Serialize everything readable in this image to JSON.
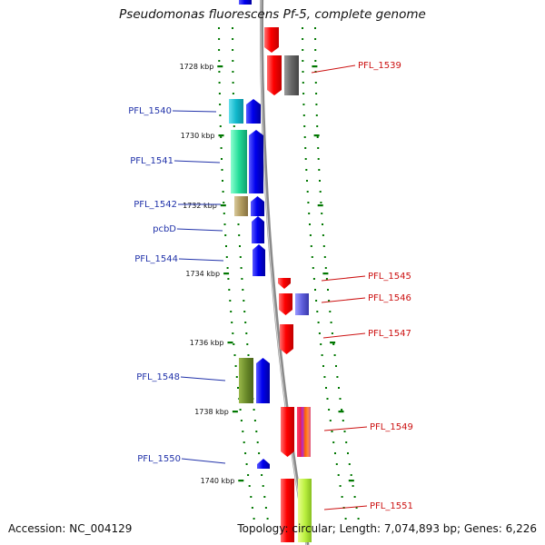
{
  "title": "Pseudomonas fluorescens Pf-5, complete genome",
  "footer": {
    "accession": "Accession: NC_004129",
    "topology": "Topology: circular; Length: 7,074,893 bp; Genes: 6,226"
  },
  "colors": {
    "forward_strand": "#0000ee",
    "reverse_strand": "#ee0000",
    "label_left": "#2233aa",
    "label_right": "#cc1111",
    "tick": "#007700",
    "backbone": "#8a8a8a"
  },
  "ticks": [
    {
      "label": "1728 kbp"
    },
    {
      "label": "1730 kbp"
    },
    {
      "label": "1732 kbp"
    },
    {
      "label": "1734 kbp"
    },
    {
      "label": "1736 kbp"
    },
    {
      "label": "1738 kbp"
    },
    {
      "label": "1740 kbp"
    }
  ],
  "gene_labels": [
    {
      "text": "PFL_1539",
      "side": "right"
    },
    {
      "text": "PFL_1540",
      "side": "left"
    },
    {
      "text": "PFL_1541",
      "side": "left"
    },
    {
      "text": "PFL_1542",
      "side": "left"
    },
    {
      "text": "pcbD",
      "side": "left"
    },
    {
      "text": "PFL_1544",
      "side": "left"
    },
    {
      "text": "PFL_1545",
      "side": "right"
    },
    {
      "text": "PFL_1546",
      "side": "right"
    },
    {
      "text": "PFL_1547",
      "side": "right"
    },
    {
      "text": "PFL_1548",
      "side": "left"
    },
    {
      "text": "PFL_1549",
      "side": "right"
    },
    {
      "text": "PFL_1550",
      "side": "left"
    },
    {
      "text": "PFL_1551",
      "side": "right"
    }
  ]
}
